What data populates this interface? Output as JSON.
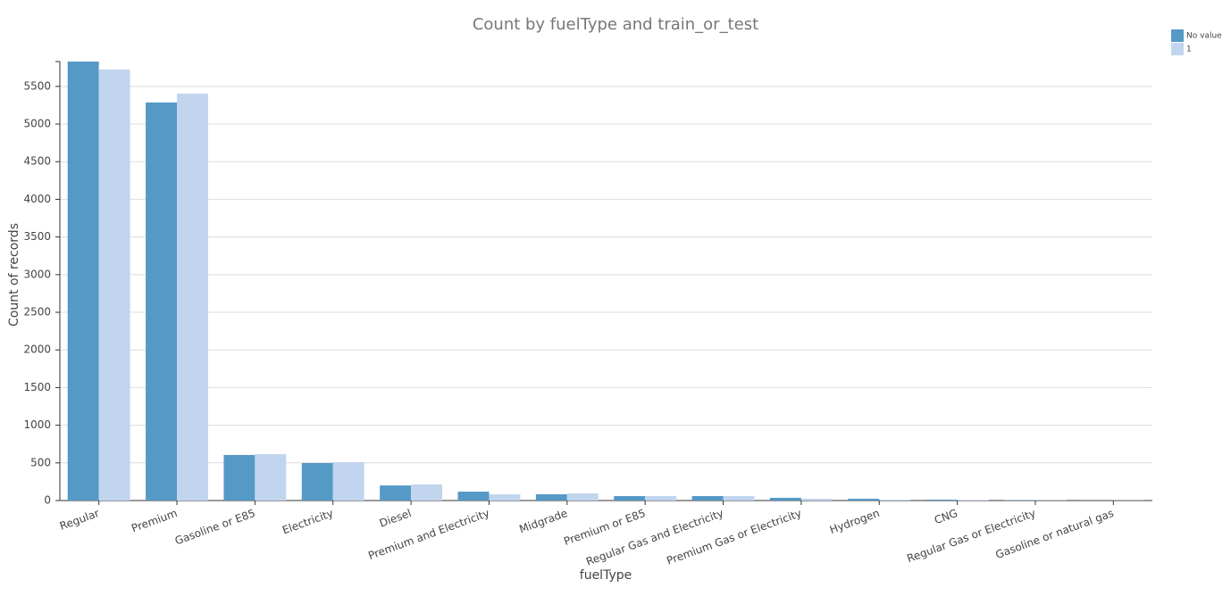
{
  "chart_data": {
    "type": "bar",
    "title": "Count by fuelType and train_or_test",
    "x_label": "fuelType",
    "y_label": "Count of records",
    "categories": [
      "Regular",
      "Premium",
      "Gasoline or E85",
      "Electricity",
      "Diesel",
      "Premium and Electricity",
      "Midgrade",
      "Premium or E85",
      "Regular Gas and Electricity",
      "Premium Gas or Electricity",
      "Hydrogen",
      "CNG",
      "Regular Gas or Electricity",
      "Gasoline or natural gas"
    ],
    "series": [
      {
        "name": "No value",
        "color": "#5599c7",
        "values": [
          5830,
          5287,
          605,
          498,
          200,
          118,
          83,
          59,
          59,
          36,
          24,
          12,
          5,
          2
        ]
      },
      {
        "name": "1",
        "color": "#c2d5ef",
        "values": [
          5725,
          5405,
          616,
          510,
          213,
          83,
          95,
          59,
          59,
          24,
          12,
          8,
          3,
          2
        ]
      }
    ],
    "ylim": [
      0,
      5830
    ],
    "yticks": [
      0,
      500,
      1000,
      1500,
      2000,
      2500,
      3000,
      3500,
      4000,
      4500,
      5000,
      5500
    ],
    "grid": true
  }
}
